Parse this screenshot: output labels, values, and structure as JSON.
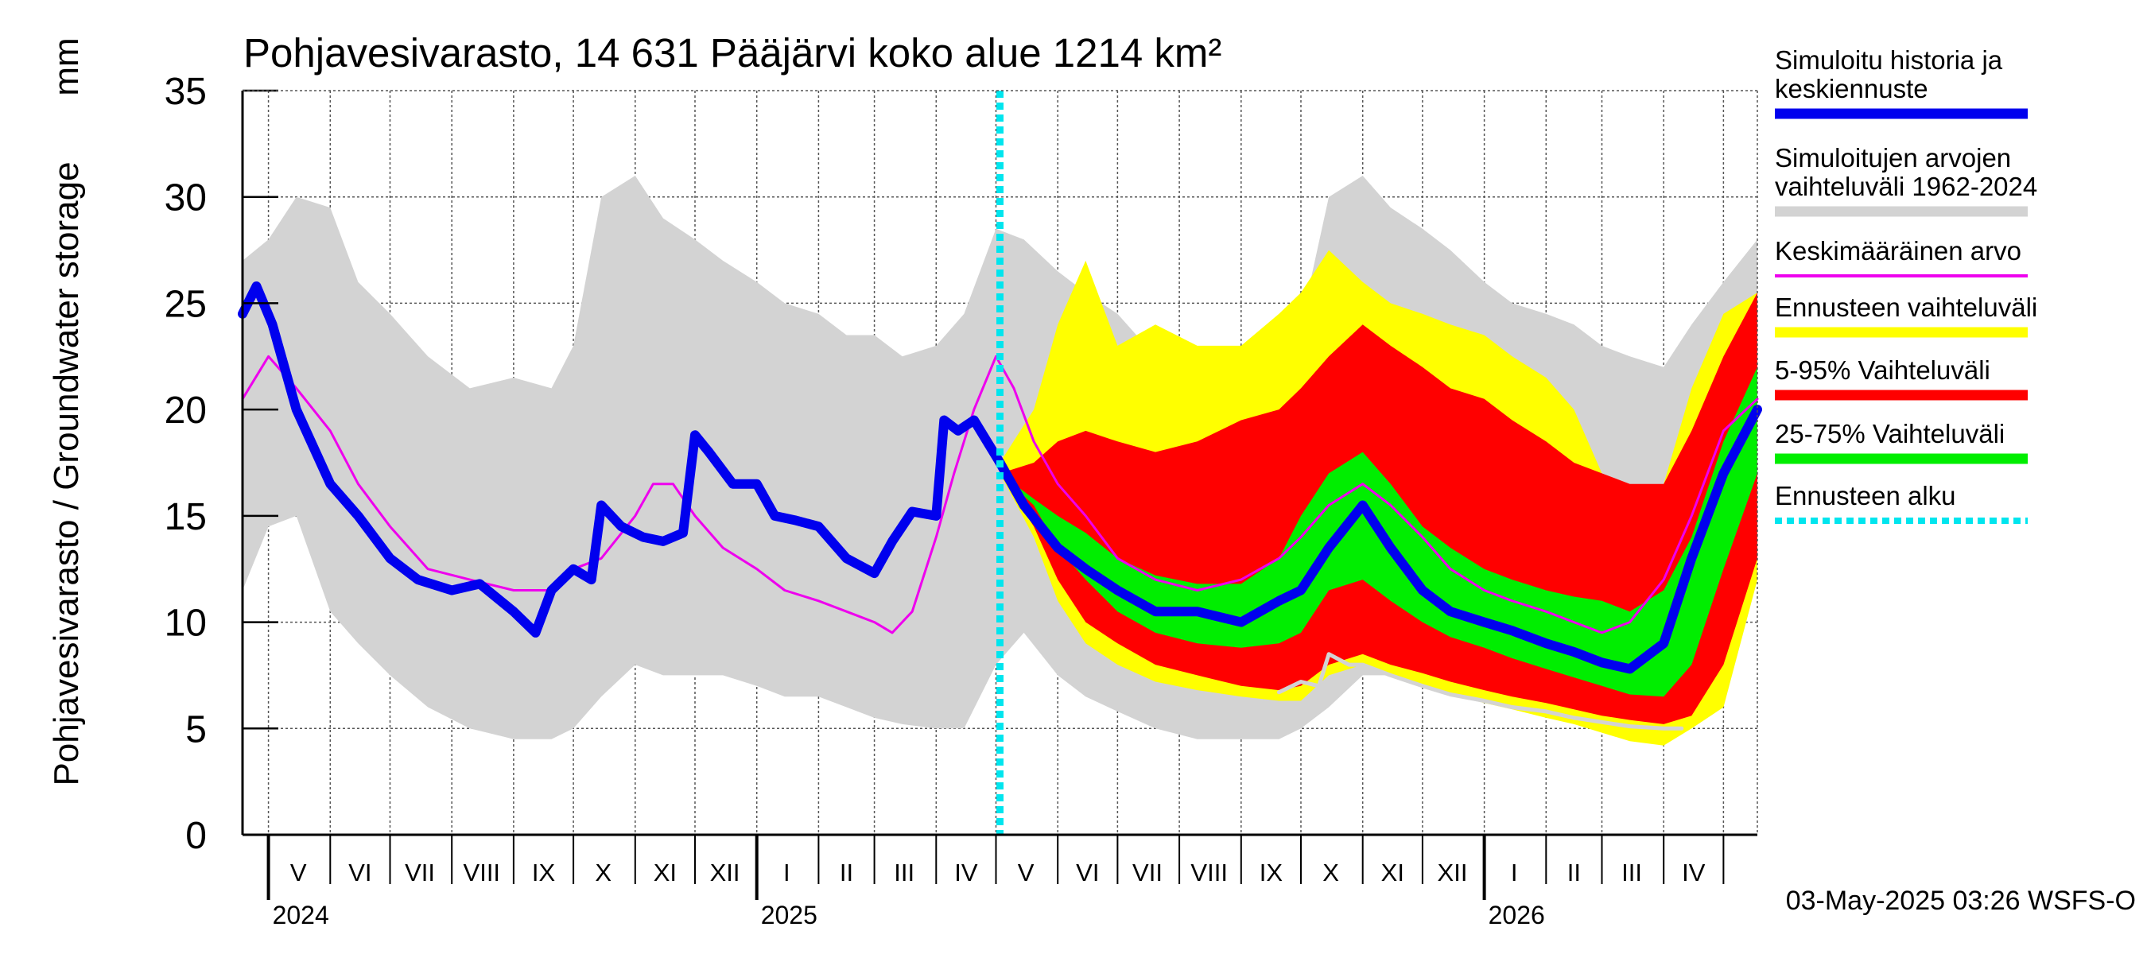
{
  "chart_data": {
    "type": "area",
    "title": "Pohjavesivarasto, 14 631 Pääjärvi koko alue 1214 km²",
    "ylabel": "Pohjavesivarasto / Groundwater storage",
    "yunit": "mm",
    "ylim": [
      0,
      35
    ],
    "yticks": [
      0,
      5,
      10,
      15,
      20,
      25,
      30,
      35
    ],
    "xlim": [
      "2024-04-18",
      "2026-05-18"
    ],
    "grid": true,
    "legend_position": "right",
    "footer": "03-May-2025 03:26 WSFS-O",
    "forecast_start": "2025-05-03",
    "month_labels": [
      {
        "label": "V",
        "date": "2024-05-16"
      },
      {
        "label": "VI",
        "date": "2024-06-16"
      },
      {
        "label": "VII",
        "date": "2024-07-16"
      },
      {
        "label": "VIII",
        "date": "2024-08-16"
      },
      {
        "label": "IX",
        "date": "2024-09-16"
      },
      {
        "label": "X",
        "date": "2024-10-16"
      },
      {
        "label": "XI",
        "date": "2024-11-16"
      },
      {
        "label": "XII",
        "date": "2024-12-16"
      },
      {
        "label": "I",
        "date": "2025-01-16"
      },
      {
        "label": "II",
        "date": "2025-02-15"
      },
      {
        "label": "III",
        "date": "2025-03-16"
      },
      {
        "label": "IV",
        "date": "2025-04-16"
      },
      {
        "label": "V",
        "date": "2025-05-16"
      },
      {
        "label": "VI",
        "date": "2025-06-16"
      },
      {
        "label": "VII",
        "date": "2025-07-16"
      },
      {
        "label": "VIII",
        "date": "2025-08-16"
      },
      {
        "label": "IX",
        "date": "2025-09-16"
      },
      {
        "label": "X",
        "date": "2025-10-16"
      },
      {
        "label": "XI",
        "date": "2025-11-16"
      },
      {
        "label": "XII",
        "date": "2025-12-16"
      },
      {
        "label": "I",
        "date": "2026-01-16"
      },
      {
        "label": "II",
        "date": "2026-02-15"
      },
      {
        "label": "III",
        "date": "2026-03-16"
      },
      {
        "label": "IV",
        "date": "2026-04-16"
      }
    ],
    "month_boundaries": [
      "2024-05-01",
      "2024-06-01",
      "2024-07-01",
      "2024-08-01",
      "2024-09-01",
      "2024-10-01",
      "2024-11-01",
      "2024-12-01",
      "2025-01-01",
      "2025-02-01",
      "2025-03-01",
      "2025-04-01",
      "2025-05-01",
      "2025-06-01",
      "2025-07-01",
      "2025-08-01",
      "2025-09-01",
      "2025-10-01",
      "2025-11-01",
      "2025-12-01",
      "2026-01-01",
      "2026-02-01",
      "2026-03-01",
      "2026-04-01",
      "2026-05-01"
    ],
    "year_labels": [
      {
        "label": "2024",
        "date": "2024-05-01"
      },
      {
        "label": "2025",
        "date": "2025-01-01"
      },
      {
        "label": "2026",
        "date": "2026-01-01"
      }
    ],
    "legend": [
      {
        "label": "Simuloitu historia ja keskiennuste",
        "color": "#0000ee",
        "style": "thick"
      },
      {
        "label": "Simuloitujen arvojen vaihteluväli 1962-2024",
        "color": "#d3d3d3",
        "style": "thick"
      },
      {
        "label": "Keskimääräinen arvo",
        "color": "#ee00ee",
        "style": "thin"
      },
      {
        "label": "Ennusteen vaihteluväli",
        "color": "#ffff00",
        "style": "thick"
      },
      {
        "label": "5-95% Vaihteluväli",
        "color": "#ff0000",
        "style": "thick"
      },
      {
        "label": "25-75% Vaihteluväli",
        "color": "#00ee00",
        "style": "thick"
      },
      {
        "label": "Ennusteen alku",
        "color": "#00e5ee",
        "style": "dotted"
      }
    ],
    "series": [
      {
        "name": "Simuloitujen arvojen vaihteluväli 1962-2024",
        "kind": "band",
        "color": "#d3d3d3",
        "x": [
          "2024-04-18",
          "2024-05-01",
          "2024-05-15",
          "2024-06-01",
          "2024-06-15",
          "2024-07-01",
          "2024-07-20",
          "2024-08-10",
          "2024-09-01",
          "2024-09-20",
          "2024-10-01",
          "2024-10-15",
          "2024-11-01",
          "2024-11-15",
          "2024-12-01",
          "2024-12-15",
          "2025-01-01",
          "2025-01-15",
          "2025-02-01",
          "2025-02-15",
          "2025-03-01",
          "2025-03-15",
          "2025-04-01",
          "2025-04-15",
          "2025-05-01",
          "2025-05-15",
          "2025-06-01",
          "2025-06-15",
          "2025-07-01",
          "2025-07-20",
          "2025-08-10",
          "2025-09-01",
          "2025-09-20",
          "2025-10-01",
          "2025-10-15",
          "2025-11-01",
          "2025-11-15",
          "2025-12-01",
          "2025-12-15",
          "2026-01-01",
          "2026-01-15",
          "2026-02-01",
          "2026-02-15",
          "2026-03-01",
          "2026-03-15",
          "2026-04-01",
          "2026-04-15",
          "2026-05-01",
          "2026-05-18"
        ],
        "lower": [
          11.5,
          14.5,
          15.0,
          10.5,
          9.0,
          7.5,
          6.0,
          5.0,
          4.5,
          4.5,
          5.0,
          6.5,
          8.0,
          7.5,
          7.5,
          7.5,
          7.0,
          6.5,
          6.5,
          6.0,
          5.5,
          5.2,
          5.0,
          5.0,
          8.0,
          9.5,
          7.5,
          6.5,
          5.8,
          5.0,
          4.5,
          4.5,
          4.5,
          5.0,
          6.0,
          7.5,
          7.5,
          7.0,
          6.8,
          6.5,
          6.2,
          6.0,
          5.8,
          5.5,
          5.2,
          5.0,
          5.0,
          6.0,
          12.0
        ],
        "upper": [
          27.0,
          28.0,
          30.0,
          29.5,
          26.0,
          24.5,
          22.5,
          21.0,
          21.5,
          21.0,
          23.0,
          30.0,
          31.0,
          29.0,
          28.0,
          27.0,
          26.0,
          25.0,
          24.5,
          23.5,
          23.5,
          22.5,
          23.0,
          24.5,
          28.5,
          28.0,
          26.5,
          25.5,
          24.5,
          22.5,
          21.5,
          22.0,
          22.0,
          24.0,
          30.0,
          31.0,
          29.5,
          28.5,
          27.5,
          26.0,
          25.0,
          24.5,
          24.0,
          23.0,
          22.5,
          22.0,
          24.0,
          26.0,
          28.0
        ]
      },
      {
        "name": "Ennusteen vaihteluväli",
        "kind": "band",
        "color": "#ffff00",
        "x": [
          "2025-05-03",
          "2025-05-20",
          "2025-06-01",
          "2025-06-15",
          "2025-07-01",
          "2025-07-20",
          "2025-08-10",
          "2025-09-01",
          "2025-09-20",
          "2025-10-01",
          "2025-10-15",
          "2025-11-01",
          "2025-11-15",
          "2025-12-01",
          "2025-12-15",
          "2026-01-01",
          "2026-01-15",
          "2026-02-01",
          "2026-02-15",
          "2026-03-01",
          "2026-03-15",
          "2026-04-01",
          "2026-04-15",
          "2026-05-01",
          "2026-05-18"
        ],
        "lower": [
          17.0,
          14.0,
          11.0,
          9.0,
          8.0,
          7.2,
          6.8,
          6.5,
          6.3,
          6.3,
          7.5,
          8.0,
          7.5,
          7.0,
          6.6,
          6.2,
          5.9,
          5.5,
          5.2,
          4.8,
          4.4,
          4.2,
          5.0,
          6.0,
          12.0
        ],
        "upper": [
          17.5,
          20.0,
          24.0,
          27.0,
          23.0,
          24.0,
          23.0,
          23.0,
          24.5,
          25.5,
          27.5,
          26.0,
          25.0,
          24.5,
          24.0,
          23.5,
          22.5,
          21.5,
          20.0,
          17.0,
          14.5,
          16.5,
          21.0,
          24.5,
          25.5
        ]
      },
      {
        "name": "5-95% Vaihteluväli",
        "kind": "band",
        "color": "#ff0000",
        "x": [
          "2025-05-03",
          "2025-05-20",
          "2025-06-01",
          "2025-06-15",
          "2025-07-01",
          "2025-07-20",
          "2025-08-10",
          "2025-09-01",
          "2025-09-20",
          "2025-10-01",
          "2025-10-15",
          "2025-11-01",
          "2025-11-15",
          "2025-12-01",
          "2025-12-15",
          "2026-01-01",
          "2026-01-15",
          "2026-02-01",
          "2026-02-15",
          "2026-03-01",
          "2026-03-15",
          "2026-04-01",
          "2026-04-15",
          "2026-05-01",
          "2026-05-18"
        ],
        "lower": [
          17.0,
          14.5,
          12.0,
          10.0,
          9.0,
          8.0,
          7.5,
          7.0,
          6.8,
          7.0,
          8.0,
          8.5,
          8.0,
          7.6,
          7.2,
          6.8,
          6.5,
          6.2,
          5.9,
          5.6,
          5.4,
          5.2,
          5.6,
          8.0,
          13.0
        ],
        "upper": [
          17.0,
          17.5,
          18.5,
          19.0,
          18.5,
          18.0,
          18.5,
          19.5,
          20.0,
          21.0,
          22.5,
          24.0,
          23.0,
          22.0,
          21.0,
          20.5,
          19.5,
          18.5,
          17.5,
          17.0,
          16.5,
          16.5,
          19.0,
          22.5,
          25.5
        ]
      },
      {
        "name": "25-75% Vaihteluväli",
        "kind": "band",
        "color": "#00ee00",
        "x": [
          "2025-05-03",
          "2025-05-20",
          "2025-06-01",
          "2025-06-15",
          "2025-07-01",
          "2025-07-20",
          "2025-08-10",
          "2025-09-01",
          "2025-09-20",
          "2025-10-01",
          "2025-10-15",
          "2025-11-01",
          "2025-11-15",
          "2025-12-01",
          "2025-12-15",
          "2026-01-01",
          "2026-01-15",
          "2026-02-01",
          "2026-02-15",
          "2026-03-01",
          "2026-03-15",
          "2026-04-01",
          "2026-04-15",
          "2026-05-01",
          "2026-05-18"
        ],
        "lower": [
          17.0,
          15.5,
          13.5,
          12.0,
          10.5,
          9.5,
          9.0,
          8.8,
          9.0,
          9.5,
          11.5,
          12.0,
          11.0,
          10.0,
          9.3,
          8.8,
          8.3,
          7.8,
          7.4,
          7.0,
          6.6,
          6.5,
          8.0,
          12.5,
          17.0
        ],
        "upper": [
          17.0,
          15.8,
          15.0,
          14.2,
          13.0,
          12.2,
          11.8,
          11.8,
          13.0,
          15.0,
          17.0,
          18.0,
          16.5,
          14.5,
          13.5,
          12.5,
          12.0,
          11.5,
          11.2,
          11.0,
          10.5,
          11.5,
          14.0,
          18.5,
          22.0
        ]
      },
      {
        "name": "Simuloitu historia ja keskiennuste",
        "kind": "line",
        "color": "#0000ee",
        "x": [
          "2024-04-18",
          "2024-04-25",
          "2024-05-03",
          "2024-05-15",
          "2024-06-01",
          "2024-06-15",
          "2024-07-01",
          "2024-07-15",
          "2024-08-01",
          "2024-08-15",
          "2024-09-01",
          "2024-09-12",
          "2024-09-20",
          "2024-10-01",
          "2024-10-10",
          "2024-10-15",
          "2024-10-25",
          "2024-11-05",
          "2024-11-15",
          "2024-11-25",
          "2024-12-01",
          "2024-12-08",
          "2024-12-20",
          "2025-01-01",
          "2025-01-10",
          "2025-01-20",
          "2025-02-01",
          "2025-02-15",
          "2025-03-01",
          "2025-03-10",
          "2025-03-20",
          "2025-04-01",
          "2025-04-05",
          "2025-04-12",
          "2025-04-20",
          "2025-05-03",
          "2025-05-15",
          "2025-06-01",
          "2025-06-15",
          "2025-07-01",
          "2025-07-20",
          "2025-08-10",
          "2025-09-01",
          "2025-09-20",
          "2025-10-01",
          "2025-10-15",
          "2025-11-01",
          "2025-11-15",
          "2025-12-01",
          "2025-12-15",
          "2026-01-01",
          "2026-01-15",
          "2026-02-01",
          "2026-02-15",
          "2026-03-01",
          "2026-03-15",
          "2026-04-01",
          "2026-04-15",
          "2026-05-01",
          "2026-05-18"
        ],
        "values": [
          24.5,
          25.8,
          24.0,
          20.0,
          16.5,
          15.0,
          13.0,
          12.0,
          11.5,
          11.8,
          10.5,
          9.5,
          11.5,
          12.5,
          12.0,
          15.5,
          14.5,
          14.0,
          13.8,
          14.2,
          18.8,
          18.0,
          16.5,
          16.5,
          15.0,
          14.8,
          14.5,
          13.0,
          12.3,
          13.8,
          15.2,
          15.0,
          19.5,
          19.0,
          19.5,
          17.5,
          15.5,
          13.5,
          12.5,
          11.5,
          10.5,
          10.5,
          10.0,
          11.0,
          11.5,
          13.5,
          15.5,
          13.5,
          11.5,
          10.5,
          10.0,
          9.6,
          9.0,
          8.6,
          8.1,
          7.8,
          9.0,
          13.0,
          17.0,
          20.0
        ]
      },
      {
        "name": "Keskimääräinen arvo",
        "kind": "line",
        "color": "#ee00ee",
        "x": [
          "2024-04-18",
          "2024-05-01",
          "2024-05-15",
          "2024-06-01",
          "2024-06-15",
          "2024-07-01",
          "2024-07-20",
          "2024-08-10",
          "2024-09-01",
          "2024-09-20",
          "2024-10-01",
          "2024-10-15",
          "2024-11-01",
          "2024-11-10",
          "2024-11-20",
          "2024-12-01",
          "2024-12-15",
          "2025-01-01",
          "2025-01-15",
          "2025-02-01",
          "2025-02-15",
          "2025-03-01",
          "2025-03-10",
          "2025-03-20",
          "2025-04-01",
          "2025-04-10",
          "2025-04-20",
          "2025-05-01",
          "2025-05-10",
          "2025-05-20",
          "2025-06-01",
          "2025-06-15",
          "2025-07-01",
          "2025-07-20",
          "2025-08-10",
          "2025-09-01",
          "2025-09-20",
          "2025-10-01",
          "2025-10-15",
          "2025-11-01",
          "2025-11-15",
          "2025-12-01",
          "2025-12-15",
          "2026-01-01",
          "2026-01-15",
          "2026-02-01",
          "2026-02-15",
          "2026-03-01",
          "2026-03-15",
          "2026-04-01",
          "2026-04-15",
          "2026-05-01",
          "2026-05-18"
        ],
        "values": [
          20.5,
          22.5,
          21.0,
          19.0,
          16.5,
          14.5,
          12.5,
          12.0,
          11.5,
          11.5,
          12.5,
          13.0,
          15.0,
          16.5,
          16.5,
          15.0,
          13.5,
          12.5,
          11.5,
          11.0,
          10.5,
          10.0,
          9.5,
          10.5,
          14.0,
          17.0,
          20.0,
          22.5,
          21.0,
          18.5,
          16.5,
          15.0,
          13.0,
          12.0,
          11.5,
          12.0,
          13.0,
          14.0,
          15.5,
          16.5,
          15.5,
          14.0,
          12.5,
          11.5,
          11.0,
          10.5,
          10.0,
          9.5,
          10.0,
          12.0,
          15.0,
          19.0,
          20.5
        ]
      },
      {
        "name": "Simuloitujen arvojen minimi",
        "kind": "line",
        "color": "#d3d3d3",
        "x": [
          "2025-09-20",
          "2025-10-01",
          "2025-10-10",
          "2025-10-15",
          "2025-10-25",
          "2025-11-01",
          "2025-11-15",
          "2025-12-01",
          "2025-12-15",
          "2026-01-01",
          "2026-01-15",
          "2026-02-01",
          "2026-02-15",
          "2026-03-01",
          "2026-03-15",
          "2026-04-01",
          "2026-04-10"
        ],
        "values": [
          6.7,
          7.2,
          7.0,
          8.5,
          8.0,
          8.0,
          7.5,
          7.0,
          6.6,
          6.3,
          6.0,
          5.8,
          5.5,
          5.3,
          5.1,
          5.0,
          5.0
        ]
      }
    ]
  }
}
